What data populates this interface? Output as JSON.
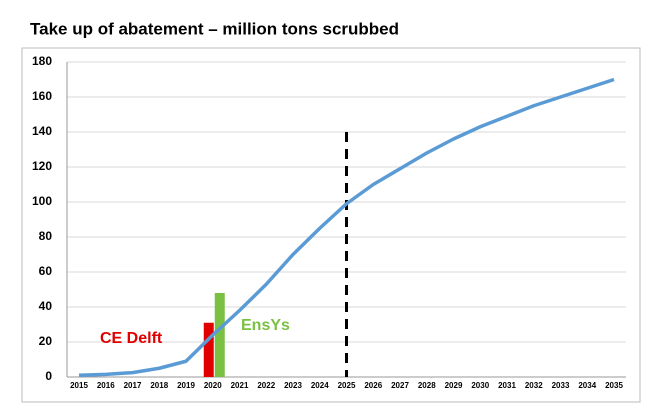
{
  "chart_data": {
    "type": "line",
    "title": "Take up of abatement – million  tons scrubbed",
    "categories": [
      "2015",
      "2016",
      "2017",
      "2018",
      "2019",
      "2020",
      "2021",
      "2022",
      "2023",
      "2024",
      "2025",
      "2026",
      "2027",
      "2028",
      "2029",
      "2030",
      "2031",
      "2032",
      "2033",
      "2034",
      "2035"
    ],
    "series": [
      {
        "color": "#5b9bd5",
        "values": [
          1,
          1.5,
          2.5,
          5,
          9,
          24,
          38,
          53,
          70,
          85,
          99,
          110,
          119,
          128,
          136,
          143,
          149,
          155,
          160,
          165,
          170
        ]
      }
    ],
    "markers": [
      {
        "name": "CE Delft",
        "category": "2020",
        "value": 31,
        "color": "#e00000"
      },
      {
        "name": "EnsYs",
        "category": "2020",
        "value": 48,
        "color": "#7ac143"
      }
    ],
    "vline": {
      "category": "2025",
      "top": 140
    },
    "ylim": [
      0,
      180
    ],
    "yticks": [
      0,
      20,
      40,
      60,
      80,
      100,
      120,
      140,
      160,
      180
    ],
    "grid": true
  }
}
